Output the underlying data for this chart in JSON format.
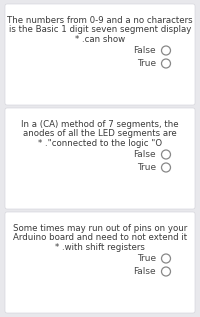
{
  "bg_color": "#e8e8ec",
  "card_color": "#ffffff",
  "card_shadow": "#d0d0d8",
  "questions": [
    {
      "lines": [
        "The numbers from 0-9 and a no characters",
        "is the Basic 1 digit seven segment display",
        "* .can show"
      ],
      "options": [
        "False",
        "True"
      ]
    },
    {
      "lines": [
        "In a (CA) method of 7 segments, the",
        "anodes of all the LED segments are",
        "* .\"connected to the logic \"O"
      ],
      "options": [
        "False",
        "True"
      ]
    },
    {
      "lines": [
        "Some times may run out of pins on your",
        "Arduino board and need to not extend it",
        "* .with shift registers"
      ],
      "options": [
        "True",
        "False"
      ]
    }
  ],
  "text_color": "#3a3a3a",
  "option_color": "#4a4a4a",
  "circle_edge_color": "#888888",
  "font_size_question": 6.2,
  "font_size_option": 6.5,
  "fig_width": 2.0,
  "fig_height": 3.17,
  "dpi": 100
}
